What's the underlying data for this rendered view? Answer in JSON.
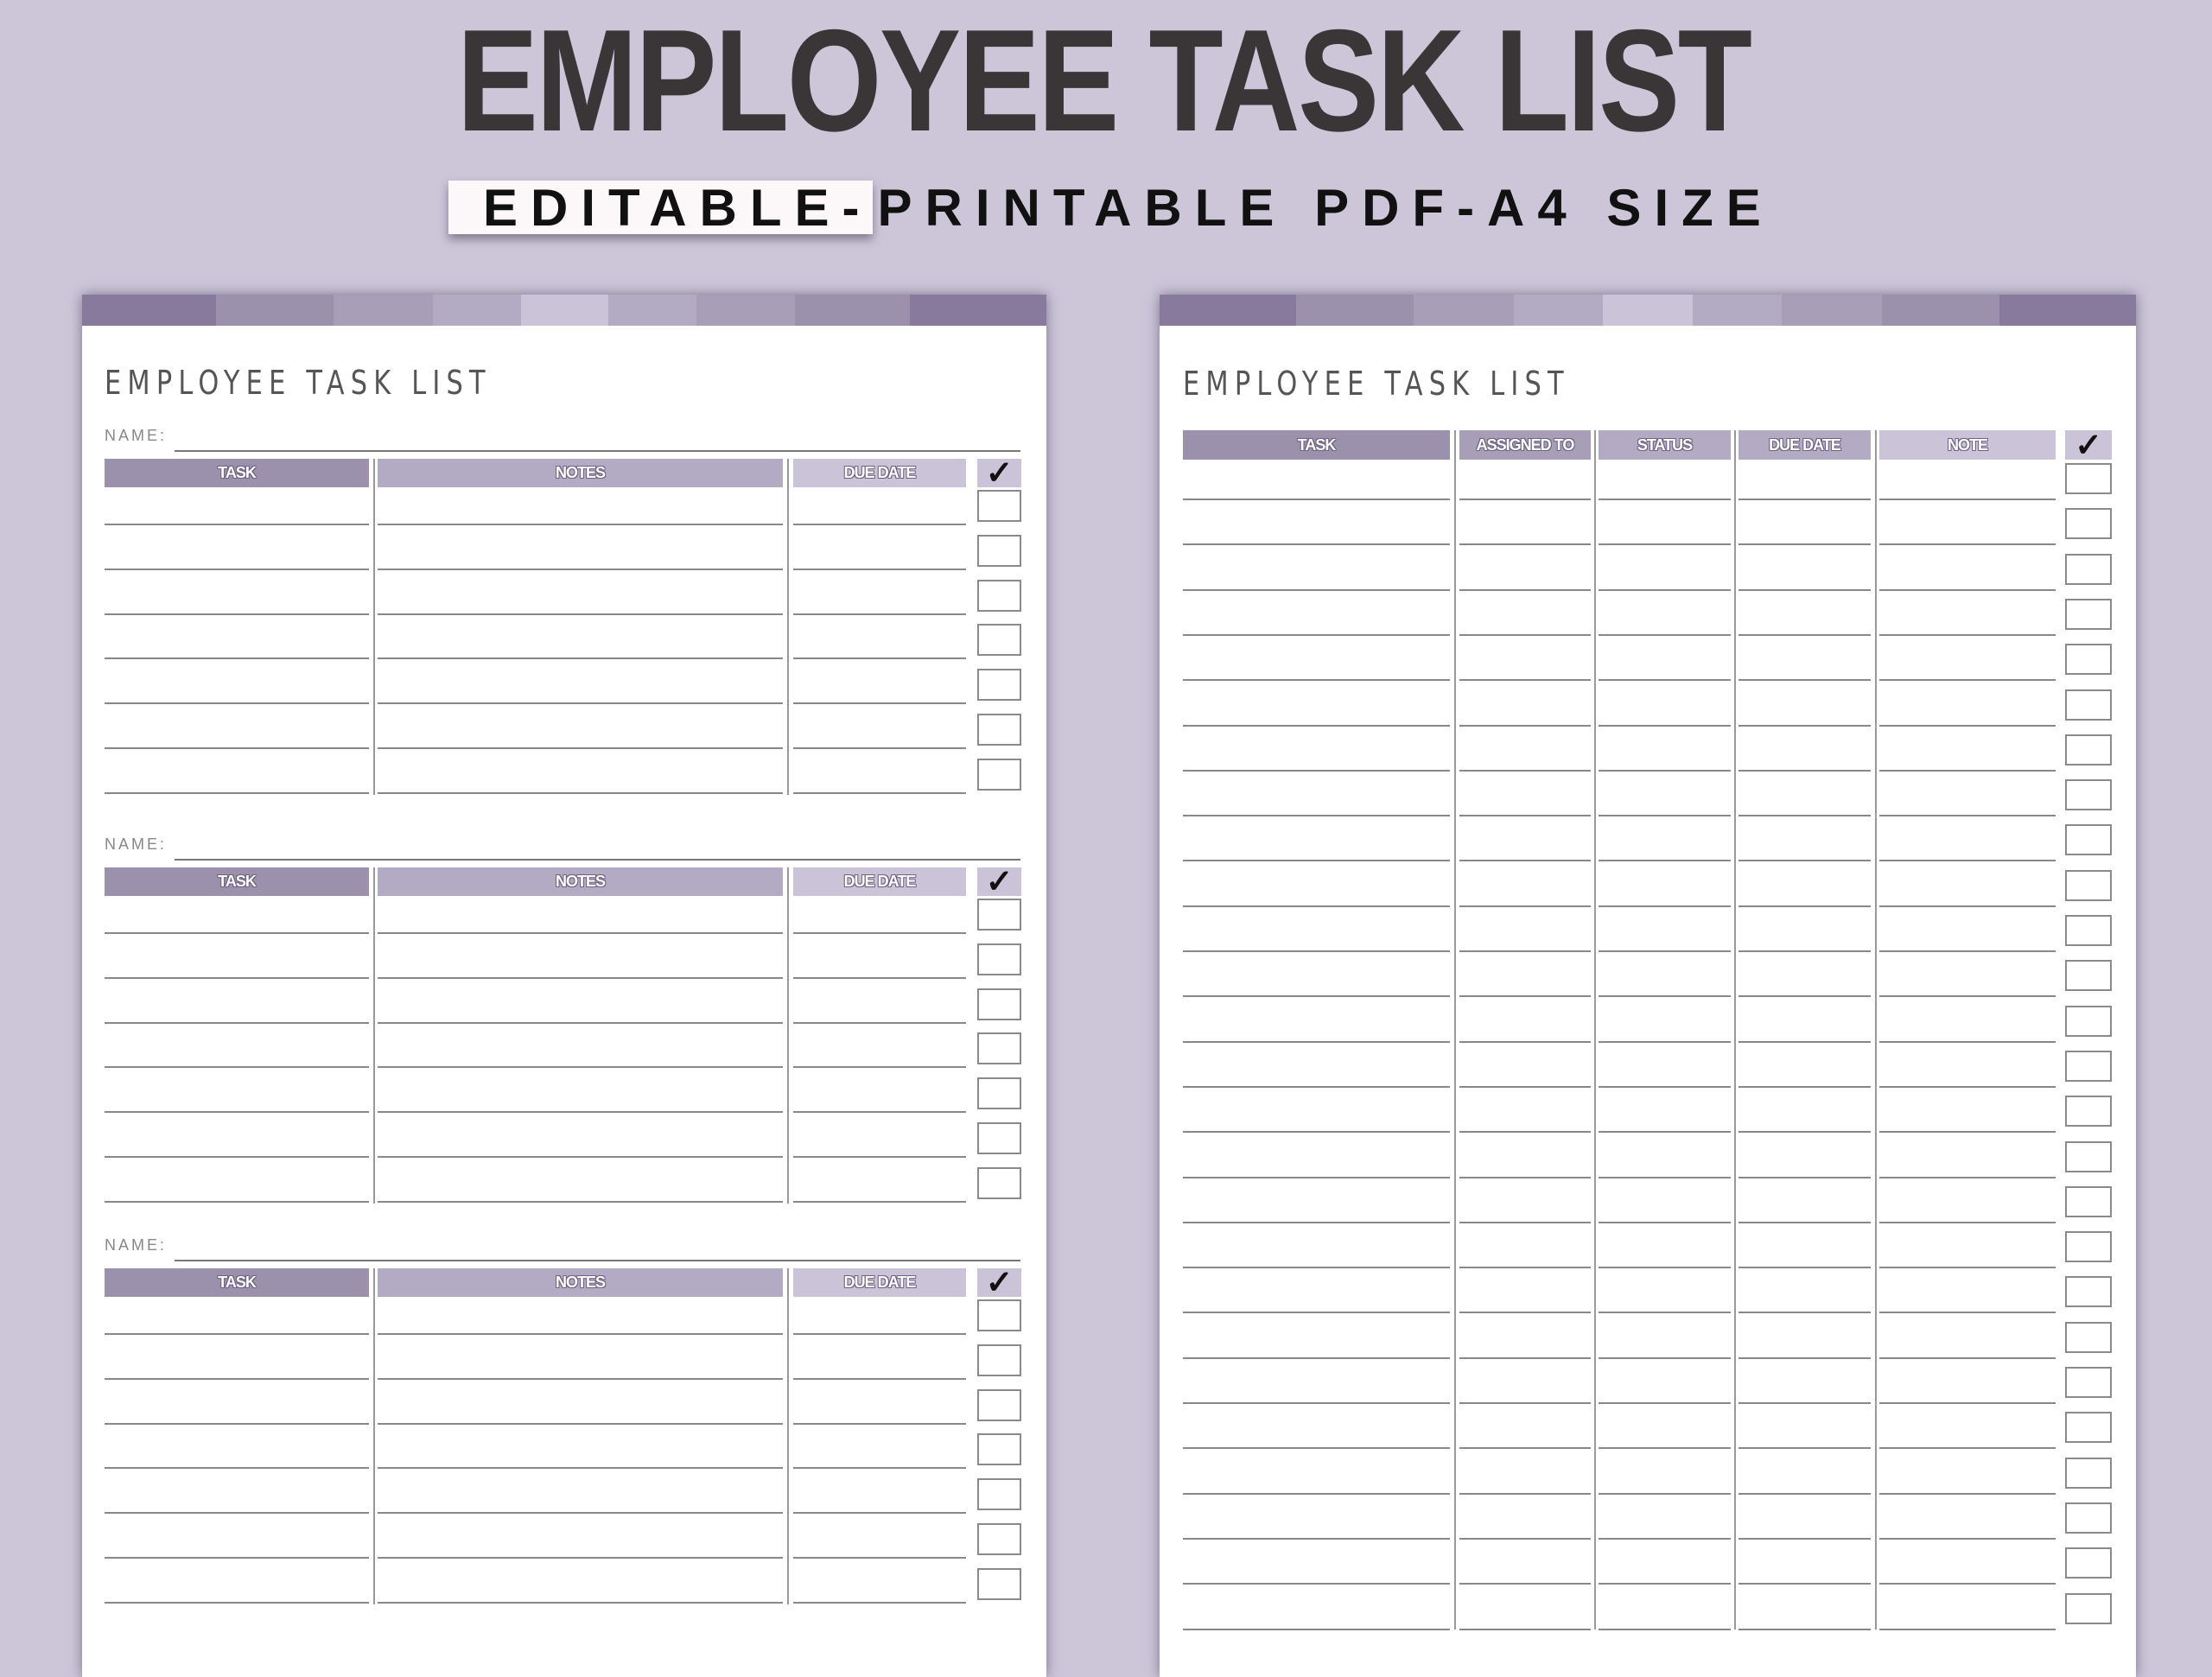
{
  "header": {
    "title": "EMPLOYEE TASK LIST",
    "subtitle_highlight": "EDITABLE-",
    "subtitle_rest": "PRINTABLE PDF-A4 SIZE"
  },
  "colors": {
    "background": "#cdc6d9",
    "bar": [
      "#877a9c",
      "#9c91ac",
      "#a89eb8",
      "#b3aac4",
      "#cbc4d8",
      "#b3aac4",
      "#a89eb8",
      "#9c91ac",
      "#877a9c"
    ]
  },
  "left_page": {
    "title": "EMPLOYEE TASK LIST",
    "sections": [
      {
        "name_label": "NAME:",
        "columns": [
          "TASK",
          "NOTES",
          "DUE DATE"
        ],
        "check_icon": "✓"
      },
      {
        "name_label": "NAME:",
        "columns": [
          "TASK",
          "NOTES",
          "DUE DATE"
        ],
        "check_icon": "✓"
      },
      {
        "name_label": "NAME:",
        "columns": [
          "TASK",
          "NOTES",
          "DUE DATE"
        ],
        "check_icon": "✓"
      }
    ]
  },
  "right_page": {
    "title": "EMPLOYEE TASK LIST",
    "columns": [
      "TASK",
      "ASSIGNED TO",
      "STATUS",
      "DUE DATE",
      "NOTE"
    ],
    "check_icon": "✓"
  }
}
